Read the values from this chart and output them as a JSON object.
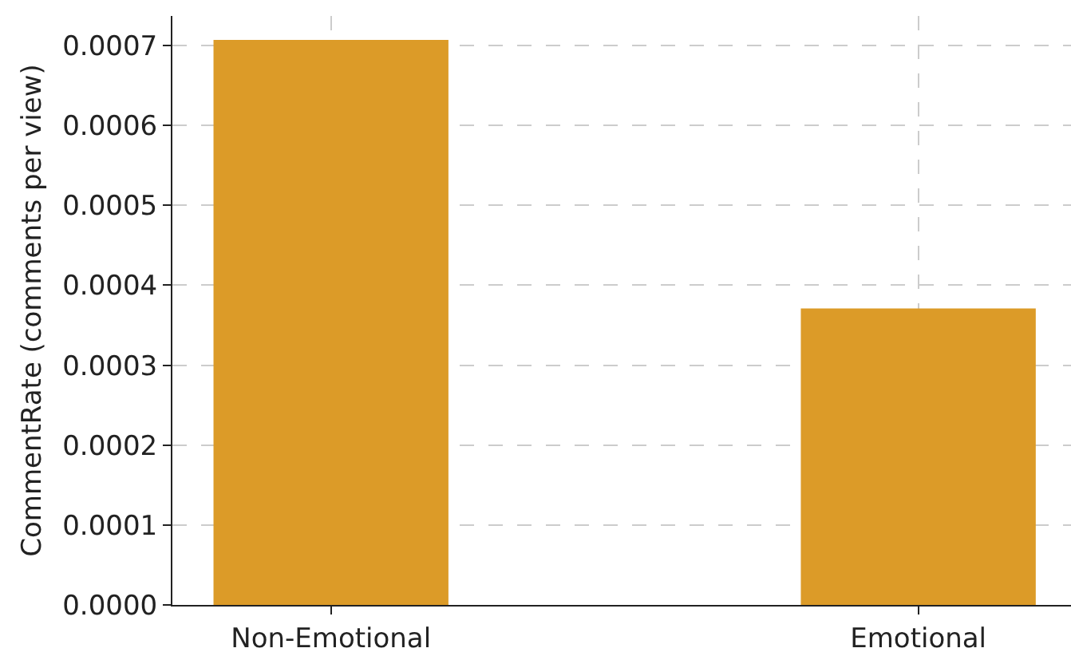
{
  "chart_data": {
    "type": "bar",
    "categories": [
      "Non-Emotional",
      "Emotional"
    ],
    "values": [
      0.000707,
      0.000371
    ],
    "color": "#dc9b28",
    "ylabel": "CommentRate (comments per view)",
    "ylim": [
      0,
      0.000737
    ],
    "yticks": [
      {
        "value": 0,
        "label": "0.0000"
      },
      0.0001,
      0.0002,
      0.0003,
      0.0004,
      0.0005,
      0.0006,
      0.0007
    ],
    "grid": true
  }
}
